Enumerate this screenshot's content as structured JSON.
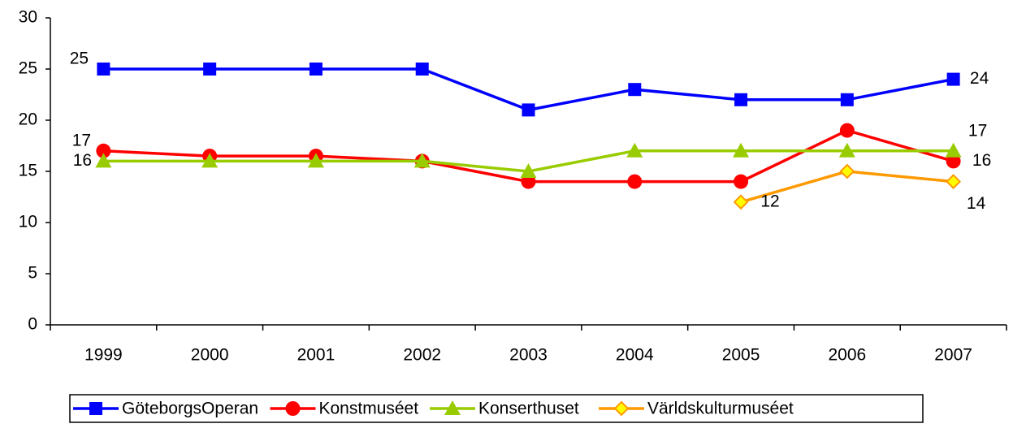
{
  "chart_data": {
    "type": "line",
    "categories": [
      "1999",
      "2000",
      "2001",
      "2002",
      "2003",
      "2004",
      "2005",
      "2006",
      "2007"
    ],
    "series": [
      {
        "name": "GöteborgsOperan",
        "color": "#0000ff",
        "marker": "square",
        "values": [
          25,
          25,
          25,
          25,
          21,
          23,
          22,
          22,
          24
        ],
        "value_labels": [
          "25",
          null,
          null,
          null,
          null,
          null,
          null,
          null,
          "24"
        ]
      },
      {
        "name": "Konstmuséet",
        "color": "#ff0000",
        "marker": "circle",
        "values": [
          17,
          16.5,
          16.5,
          16,
          14,
          14,
          14,
          19,
          16
        ],
        "value_labels": [
          "17",
          null,
          null,
          null,
          null,
          null,
          null,
          null,
          "16"
        ]
      },
      {
        "name": "Konserthuset",
        "color": "#99cc00",
        "marker": "triangle",
        "values": [
          16,
          16,
          16,
          16,
          15,
          17,
          17,
          17,
          17
        ],
        "value_labels": [
          "16",
          null,
          null,
          null,
          null,
          null,
          null,
          null,
          "17"
        ]
      },
      {
        "name": "Världskulturmuséet",
        "color": "#ff9900",
        "marker": "diamond",
        "values": [
          null,
          null,
          null,
          null,
          null,
          null,
          12,
          15,
          14
        ],
        "value_labels": [
          null,
          null,
          null,
          null,
          null,
          null,
          "12",
          null,
          "14"
        ]
      }
    ],
    "ylim": [
      0,
      30
    ],
    "yticks": [
      0,
      5,
      10,
      15,
      20,
      25,
      30
    ],
    "grid": false,
    "legend": "bottom"
  }
}
